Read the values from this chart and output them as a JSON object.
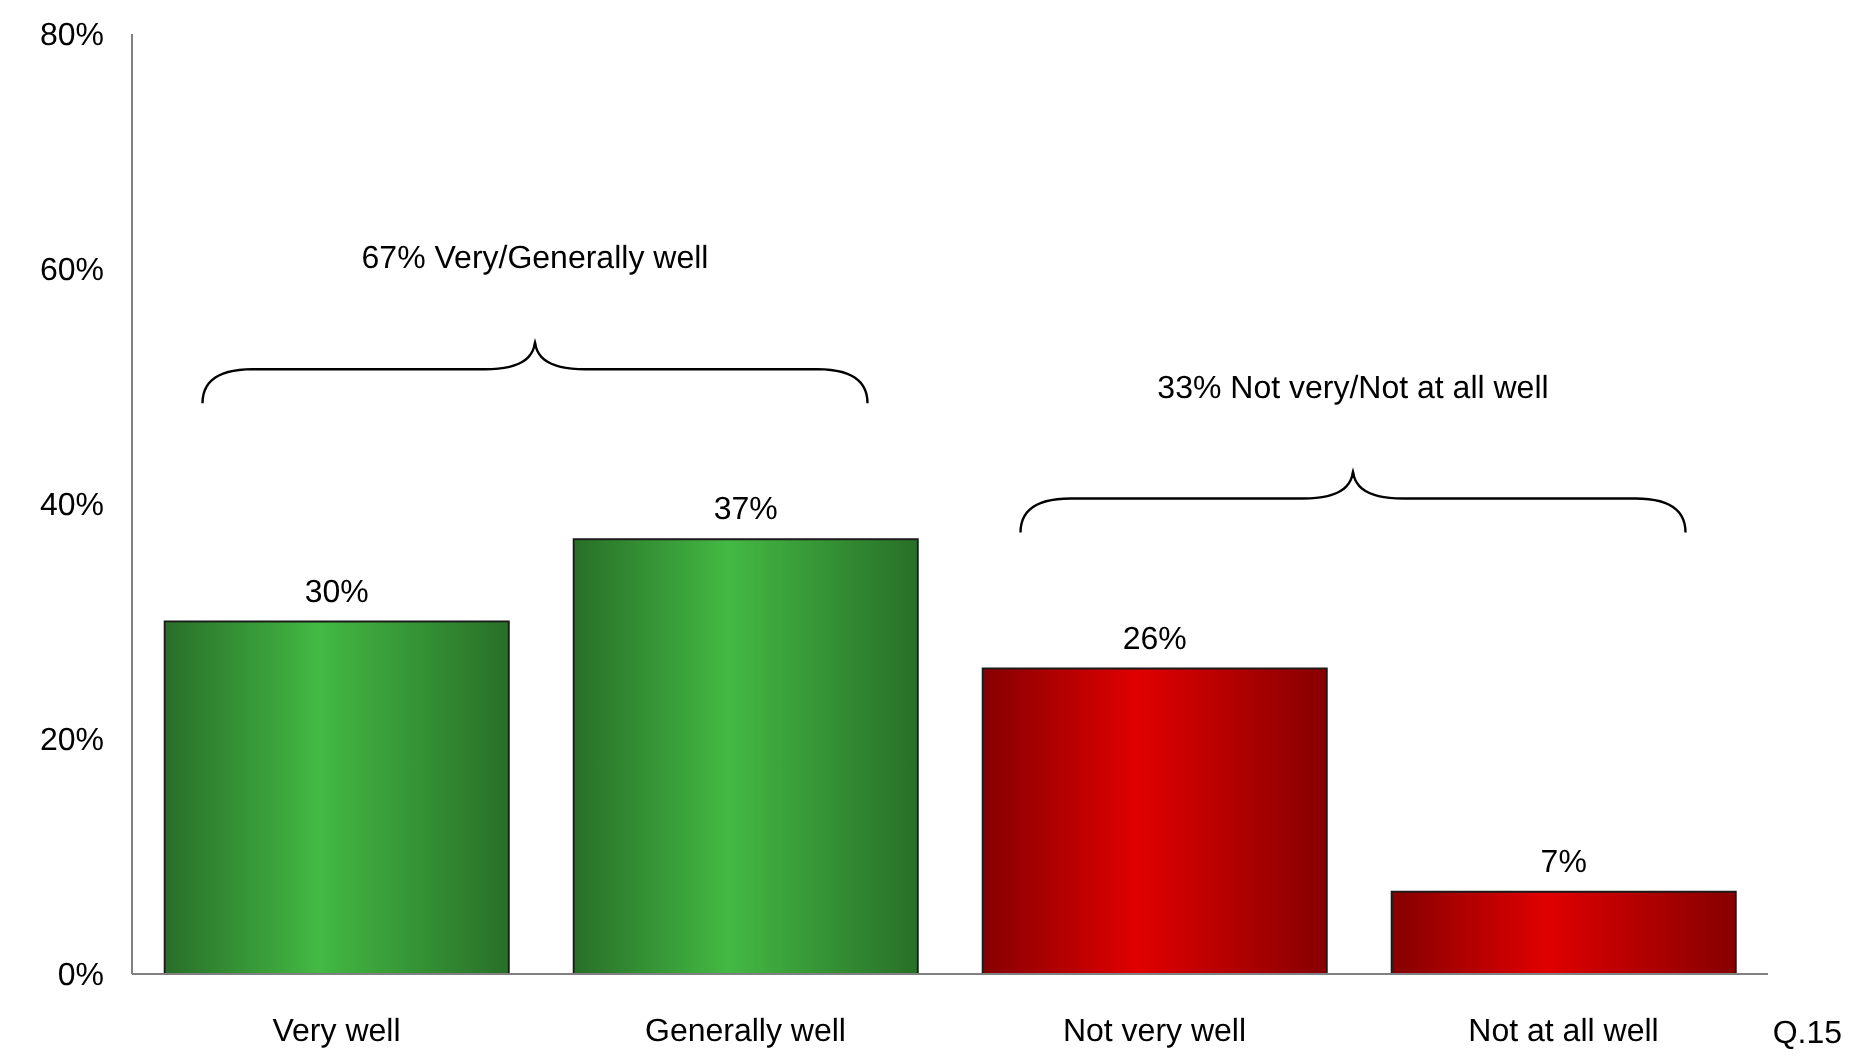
{
  "chart_data": {
    "type": "bar",
    "categories": [
      "Very well",
      "Generally well",
      "Not very well",
      "Not at all well"
    ],
    "values": [
      30,
      37,
      26,
      7
    ],
    "colors": [
      "#43b943",
      "#43b943",
      "#e00000",
      "#e00000"
    ],
    "value_labels": [
      "30%",
      "37%",
      "26%",
      "7%"
    ],
    "ylim": [
      0,
      80
    ],
    "yticks": [
      {
        "value": 0,
        "label": "0%"
      },
      {
        "value": 20,
        "label": "20%"
      },
      {
        "value": 40,
        "label": "40%"
      },
      {
        "value": 60,
        "label": "60%"
      },
      {
        "value": 80,
        "label": "80%"
      }
    ],
    "annotations": [
      "67% Very/Generally well",
      "33% Not very/Not at all well",
      "Q.15"
    ]
  }
}
